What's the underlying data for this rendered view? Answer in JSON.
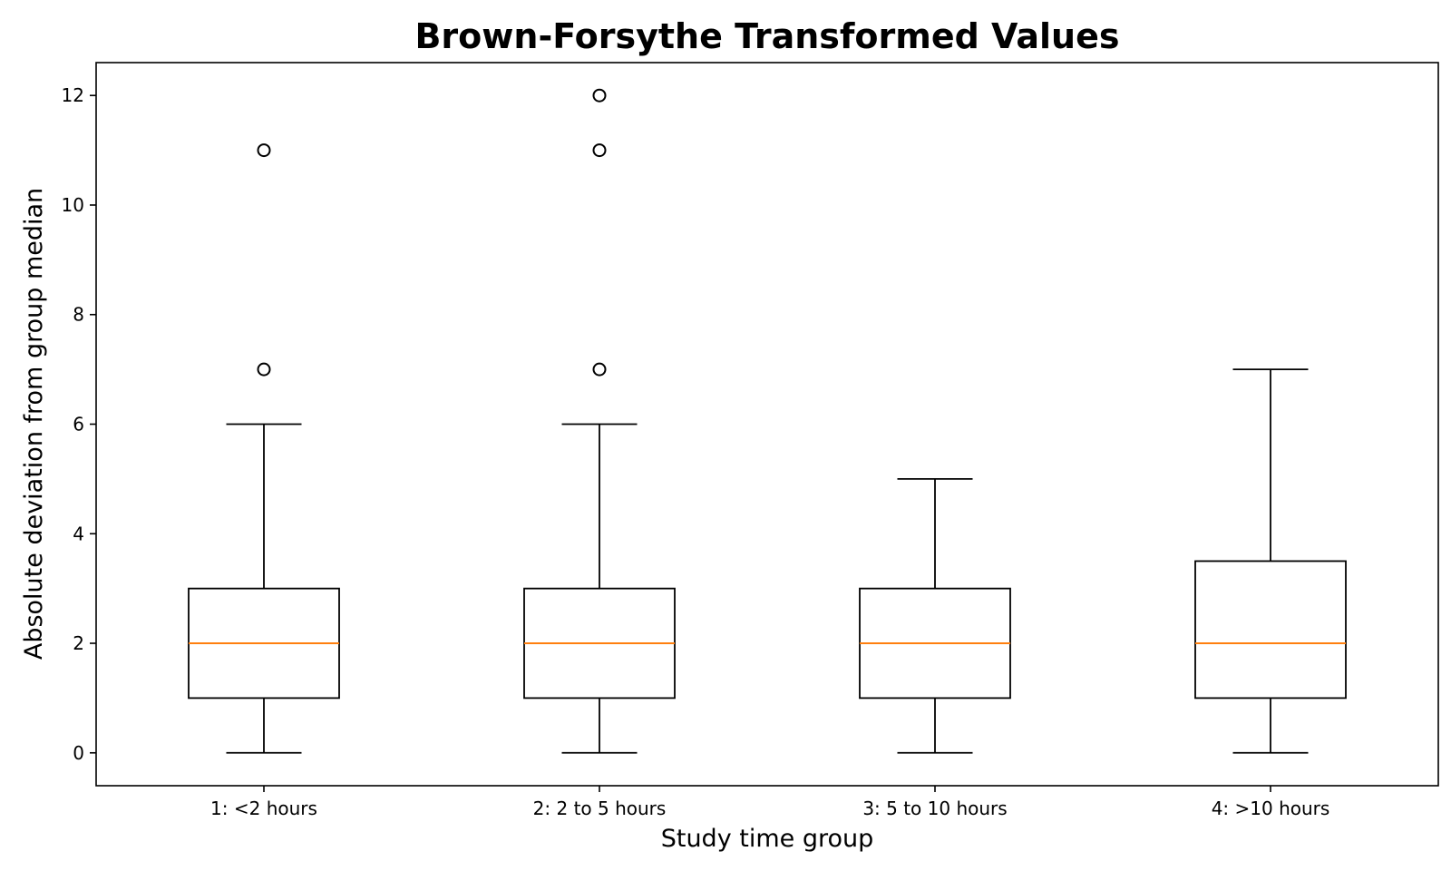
{
  "chart_data": {
    "type": "boxplot",
    "title": "Brown-Forsythe Transformed Values",
    "xlabel": "Study time group",
    "ylabel": "Absolute deviation from group median",
    "categories": [
      "1: <2 hours",
      "2: 2 to 5 hours",
      "3: 5 to 10 hours",
      "4: >10 hours"
    ],
    "ylim": [
      -0.6,
      12.6
    ],
    "yticks": [
      0,
      2,
      4,
      6,
      8,
      10,
      12
    ],
    "grid": false,
    "boxes": [
      {
        "whisker_low": 0,
        "q1": 1,
        "median": 2,
        "q3": 3,
        "whisker_high": 6,
        "outliers": [
          7,
          11
        ]
      },
      {
        "whisker_low": 0,
        "q1": 1,
        "median": 2,
        "q3": 3,
        "whisker_high": 6,
        "outliers": [
          7,
          11,
          12
        ]
      },
      {
        "whisker_low": 0,
        "q1": 1,
        "median": 2,
        "q3": 3,
        "whisker_high": 5,
        "outliers": []
      },
      {
        "whisker_low": 0,
        "q1": 1,
        "median": 2,
        "q3": 3.5,
        "whisker_high": 7,
        "outliers": []
      }
    ],
    "colors": {
      "box": "#000000",
      "median": "#ff7f0e",
      "outlier": "#000000"
    }
  }
}
